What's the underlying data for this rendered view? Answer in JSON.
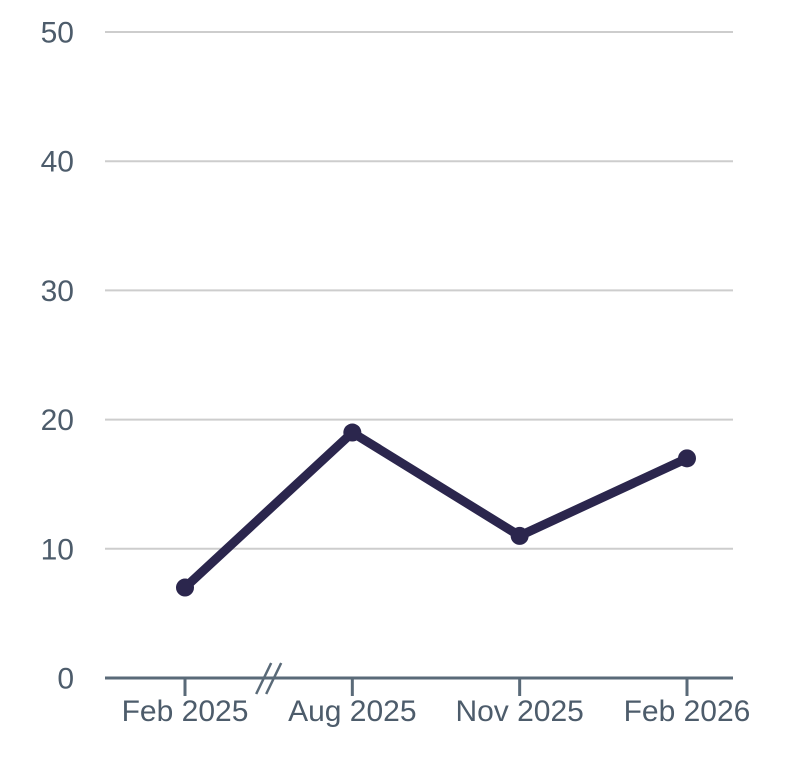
{
  "chart_data": {
    "type": "line",
    "categories": [
      "Feb 2025",
      "Aug 2025",
      "Nov 2025",
      "Feb 2026"
    ],
    "values": [
      7,
      19,
      11,
      17
    ],
    "ylim": [
      0,
      50
    ],
    "yticks": [
      0,
      10,
      20,
      30,
      40,
      50
    ],
    "grid": true,
    "legend_position": "none",
    "axis_break": {
      "between": [
        "Feb 2025",
        "Aug 2025"
      ],
      "symbol": "//"
    },
    "colors": {
      "series": "#2b264d",
      "gridline": "#cdcdcd",
      "axis": "#5a6a78",
      "tick_label": "#4d5c6b"
    }
  }
}
